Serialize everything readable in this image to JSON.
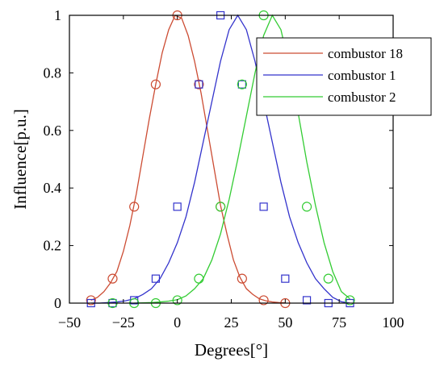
{
  "chart_data": {
    "type": "line",
    "title": "",
    "xlabel": "Degrees[°]",
    "ylabel": "Influence[p.u.]",
    "xlim": [
      -50,
      100
    ],
    "ylim": [
      0,
      1
    ],
    "x_ticks": [
      -50,
      -25,
      0,
      25,
      50,
      75,
      100
    ],
    "x_tick_labels": [
      "−50",
      "−25",
      "0",
      "25",
      "50",
      "75",
      "100"
    ],
    "y_ticks": [
      0,
      0.2,
      0.4,
      0.6,
      0.8,
      1
    ],
    "y_tick_labels": [
      "0",
      "0.2",
      "0.4",
      "0.6",
      "0.8",
      "1"
    ],
    "grid": false,
    "legend_position": "top-right",
    "series": [
      {
        "name": "combustor 18",
        "color": "#cc4c33",
        "marker": "circle",
        "center": 0,
        "curve_x": [
          -40,
          -37,
          -34,
          -31,
          -28,
          -25,
          -22,
          -19,
          -16,
          -13,
          -10,
          -7,
          -4,
          -1,
          2,
          5,
          8,
          11,
          14,
          17,
          20,
          23,
          26,
          29,
          32,
          35,
          38,
          41,
          44,
          47,
          50
        ],
        "curve_y": [
          0.01,
          0.02,
          0.04,
          0.07,
          0.11,
          0.18,
          0.27,
          0.38,
          0.51,
          0.64,
          0.76,
          0.87,
          0.95,
          1.0,
          0.99,
          0.93,
          0.84,
          0.73,
          0.6,
          0.47,
          0.34,
          0.24,
          0.15,
          0.09,
          0.05,
          0.03,
          0.015,
          0.008,
          0.004,
          0.002,
          0.001
        ],
        "marker_x": [
          -40,
          -30,
          -20,
          -10,
          0,
          10,
          20,
          30,
          40,
          50
        ],
        "marker_y": [
          0.01,
          0.085,
          0.335,
          0.76,
          1.0,
          0.76,
          0.335,
          0.085,
          0.01,
          0.0
        ]
      },
      {
        "name": "combustor 1",
        "color": "#3333cc",
        "marker": "square",
        "center": 20,
        "curve_x": [
          -40,
          -36,
          -32,
          -28,
          -24,
          -20,
          -16,
          -12,
          -8,
          -4,
          0,
          4,
          8,
          12,
          16,
          20,
          24,
          28,
          32,
          36,
          40,
          44,
          48,
          52,
          56,
          60,
          64,
          68,
          72,
          76,
          80
        ],
        "curve_y": [
          0,
          0,
          0.002,
          0.004,
          0.008,
          0.015,
          0.03,
          0.05,
          0.085,
          0.14,
          0.21,
          0.3,
          0.42,
          0.56,
          0.7,
          0.84,
          0.95,
          1.0,
          0.95,
          0.84,
          0.7,
          0.56,
          0.42,
          0.3,
          0.21,
          0.14,
          0.085,
          0.05,
          0.02,
          0.005,
          0.0
        ],
        "marker_x": [
          -40,
          -30,
          -20,
          -10,
          0,
          10,
          20,
          30,
          40,
          50,
          60,
          70,
          80
        ],
        "marker_y": [
          0.0,
          0.0,
          0.01,
          0.085,
          0.335,
          0.76,
          1.0,
          0.76,
          0.335,
          0.085,
          0.01,
          0.0,
          0.0
        ]
      },
      {
        "name": "combustor 2",
        "color": "#33cc33",
        "marker": "circle",
        "center": 40,
        "curve_x": [
          -20,
          -16,
          -12,
          -8,
          -4,
          0,
          4,
          8,
          12,
          16,
          20,
          24,
          28,
          32,
          36,
          40,
          44,
          48,
          52,
          56,
          60,
          64,
          68,
          72,
          76,
          80
        ],
        "curve_y": [
          0,
          0.001,
          0.002,
          0.004,
          0.007,
          0.012,
          0.025,
          0.05,
          0.085,
          0.15,
          0.24,
          0.36,
          0.5,
          0.65,
          0.8,
          0.93,
          1.0,
          0.95,
          0.82,
          0.66,
          0.49,
          0.34,
          0.21,
          0.11,
          0.04,
          0.015
        ],
        "marker_x": [
          -30,
          -20,
          -10,
          0,
          10,
          20,
          30,
          40,
          50,
          60,
          70,
          80
        ],
        "marker_y": [
          0.0,
          0.0,
          0.0,
          0.01,
          0.085,
          0.335,
          0.76,
          1.0,
          0.76,
          0.335,
          0.085,
          0.01
        ]
      }
    ]
  }
}
